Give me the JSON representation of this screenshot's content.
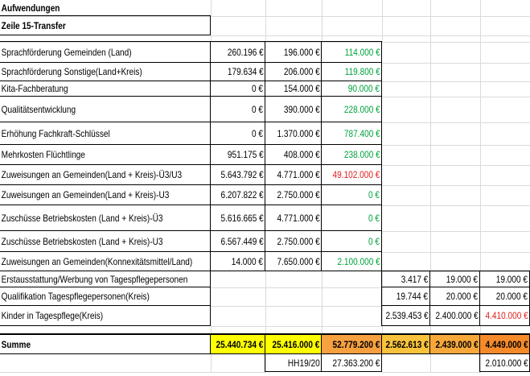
{
  "header": {
    "title": "Aufwendungen",
    "subtitle": "Zeile 15-Transfer"
  },
  "table": {
    "rows": [
      [
        "Sprachförderung Gemeinden (Land)",
        "260.196 €",
        "196.000 €",
        "114.000 €",
        null,
        null,
        null
      ],
      [
        "Sprachförderung Sonstige(Land+Kreis)",
        "179.634 €",
        "206.000 €",
        "119.800 €",
        null,
        null,
        null
      ],
      [
        "Kita-Fachberatung",
        "0 €",
        "154.000 €",
        "90.000 €",
        null,
        null,
        null
      ],
      [
        "Qualitätsentwicklung",
        "0 €",
        "390.000 €",
        "228.000 €",
        null,
        null,
        null
      ],
      [
        "Erhöhung Fachkraft-Schlüssel",
        "0 €",
        "1.370.000 €",
        "787.400 €",
        null,
        null,
        null
      ],
      [
        "Mehrkosten Flüchtlinge",
        "951.175 €",
        "408.000 €",
        "238.000 €",
        null,
        null,
        null
      ],
      [
        "Zuweisungen an Gemeinden(Land + Kreis)-Ü3/U3",
        "5.643.792 €",
        "4.771.000 €",
        "49.102.000 €",
        null,
        null,
        null
      ],
      [
        "Zuweisungen an Gemeinden(Land + Kreis)-U3",
        "6.207.822 €",
        "2.750.000 €",
        "0 €",
        null,
        null,
        null
      ],
      [
        "Zuschüsse  Betriebskosten (Land + Kreis)-Ü3",
        "5.616.665 €",
        "4.771.000 €",
        "0 €",
        null,
        null,
        null
      ],
      [
        "Zuschüsse  Betriebskosten (Land + Kreis)-U3",
        "6.567.449 €",
        "2.750.000 €",
        "0 €",
        null,
        null,
        null
      ],
      [
        "Zuweisungen an Gemeinden(Konnexitätsmittel/Land)",
        "14.000 €",
        "7.650.000 €",
        "2.100.000 €",
        null,
        null,
        null
      ],
      [
        "Erstausstattung/Werbung von Tagespflegepersonen",
        null,
        null,
        null,
        "3.417 €",
        "19.000 €",
        "19.000 €"
      ],
      [
        "Qualifikation Tagespflegepersonen(Kreis)",
        null,
        null,
        null,
        "19.744 €",
        "20.000 €",
        "20.000 €"
      ],
      [
        "Kinder in Tagespflege(Kreis)",
        null,
        null,
        null,
        "2.539.453 €",
        "2.400.000 €",
        "4.410.000 €"
      ],
      [
        "Summe",
        "25.440.734 €",
        "25.416.000 €",
        "52.779.200 €",
        "2.562.613 €",
        "2.439.000 €",
        "4.449.000 €"
      ],
      [
        null,
        null,
        "HH19/20",
        "27.363.200 €",
        null,
        null,
        "2.010.000 €"
      ]
    ]
  }
}
